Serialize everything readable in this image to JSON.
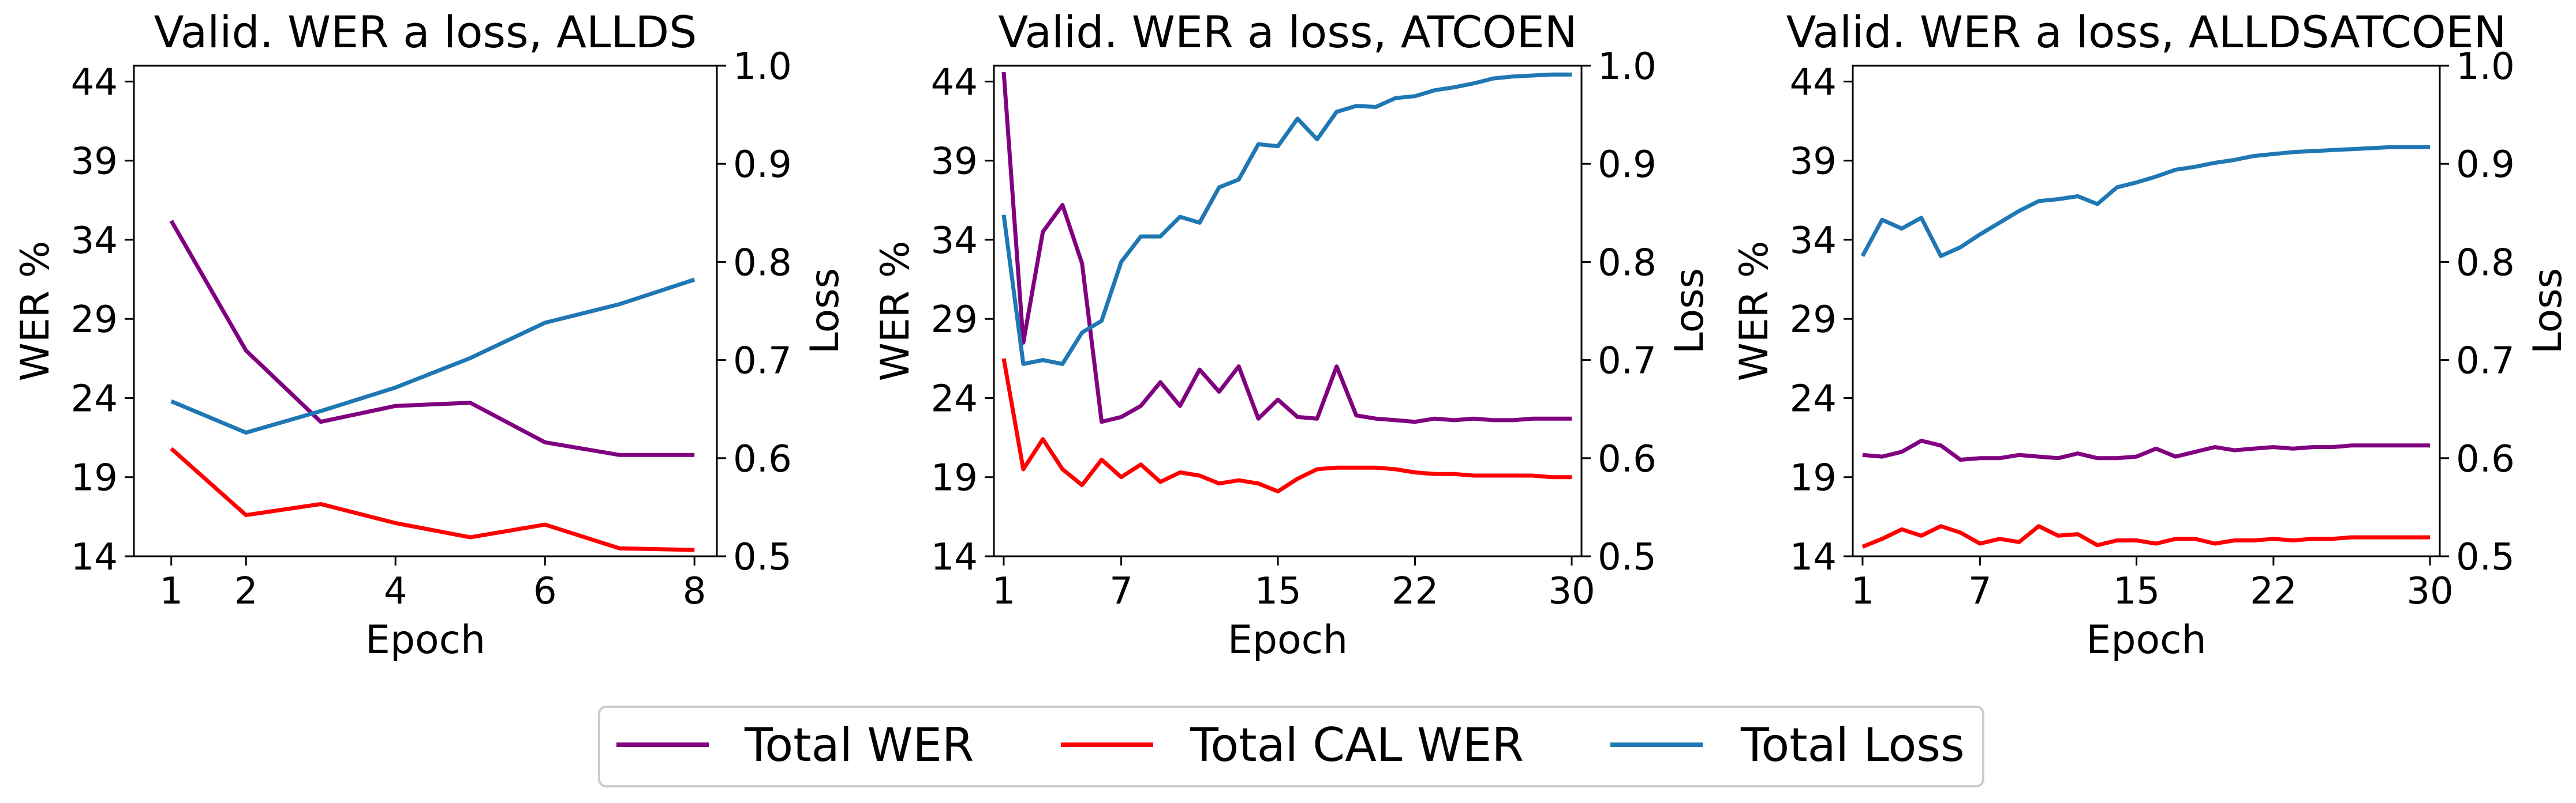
{
  "colors": {
    "total_wer": "#800080",
    "total_cal_wer": "#ff0000",
    "total_loss": "#1f77b4"
  },
  "legend": [
    {
      "key": "total_wer",
      "label": "Total WER"
    },
    {
      "key": "total_cal_wer",
      "label": "Total CAL WER"
    },
    {
      "key": "total_loss",
      "label": "Total Loss"
    }
  ],
  "chart_data": [
    {
      "type": "line",
      "title": "Valid. WER a loss, ALLDS",
      "xlabel": "Epoch",
      "ylabel": "WER %",
      "ylabel_right": "Loss",
      "xlim": [
        0.5,
        8.3
      ],
      "xticks": [
        1,
        2,
        4,
        6,
        8
      ],
      "ylim": [
        14,
        45
      ],
      "yticks": [
        14,
        19,
        24,
        29,
        34,
        39,
        44
      ],
      "ylim_right": [
        0.5,
        1.0
      ],
      "yticks_right": [
        0.5,
        0.6,
        0.7,
        0.8,
        0.9,
        1.0
      ],
      "ytick_labels_right": [
        "0.5",
        "0.6",
        "0.7",
        "0.8",
        "0.9",
        "1.0"
      ],
      "grid": false,
      "x": [
        1,
        2,
        3,
        4,
        5,
        6,
        7,
        8
      ],
      "series": [
        {
          "key": "total_wer",
          "name": "Total WER",
          "axis": "left",
          "values": [
            35.2,
            27.0,
            22.5,
            23.5,
            23.7,
            21.2,
            20.4,
            20.4
          ]
        },
        {
          "key": "total_cal_wer",
          "name": "Total CAL WER",
          "axis": "left",
          "values": [
            20.8,
            16.6,
            17.3,
            16.1,
            15.2,
            16.0,
            14.5,
            14.4
          ]
        },
        {
          "key": "total_loss",
          "name": "Total Loss",
          "axis": "right",
          "values": [
            0.658,
            0.626,
            0.648,
            0.672,
            0.702,
            0.738,
            0.757,
            0.782
          ]
        }
      ]
    },
    {
      "type": "line",
      "title": "Valid. WER a loss, ATCOEN",
      "xlabel": "Epoch",
      "ylabel": "WER %",
      "ylabel_right": "Loss",
      "xlim": [
        0.5,
        30.5
      ],
      "xticks": [
        1,
        7,
        15,
        22,
        30
      ],
      "ylim": [
        14,
        45
      ],
      "yticks": [
        14,
        19,
        24,
        29,
        34,
        39,
        44
      ],
      "ylim_right": [
        0.5,
        1.0
      ],
      "yticks_right": [
        0.5,
        0.6,
        0.7,
        0.8,
        0.9,
        1.0
      ],
      "ytick_labels_right": [
        "0.5",
        "0.6",
        "0.7",
        "0.8",
        "0.9",
        "1.0"
      ],
      "grid": false,
      "x": [
        1,
        2,
        3,
        4,
        5,
        6,
        7,
        8,
        9,
        10,
        11,
        12,
        13,
        14,
        15,
        16,
        17,
        18,
        19,
        20,
        21,
        22,
        23,
        24,
        25,
        26,
        27,
        28,
        29,
        30
      ],
      "series": [
        {
          "key": "total_wer",
          "name": "Total WER",
          "axis": "left",
          "values": [
            44.6,
            27.5,
            34.5,
            36.2,
            32.5,
            22.5,
            22.8,
            23.5,
            25.0,
            23.5,
            25.8,
            24.4,
            26.0,
            22.7,
            23.9,
            22.8,
            22.7,
            26.0,
            22.9,
            22.7,
            22.6,
            22.5,
            22.7,
            22.6,
            22.7,
            22.6,
            22.6,
            22.7,
            22.7,
            22.7
          ]
        },
        {
          "key": "total_cal_wer",
          "name": "Total CAL WER",
          "axis": "left",
          "values": [
            26.5,
            19.5,
            21.4,
            19.5,
            18.5,
            20.1,
            19.0,
            19.8,
            18.7,
            19.3,
            19.1,
            18.6,
            18.8,
            18.6,
            18.1,
            18.9,
            19.5,
            19.6,
            19.6,
            19.6,
            19.5,
            19.3,
            19.2,
            19.2,
            19.1,
            19.1,
            19.1,
            19.1,
            19.0,
            19.0
          ]
        },
        {
          "key": "total_loss",
          "name": "Total Loss",
          "axis": "right",
          "values": [
            0.848,
            0.696,
            0.7,
            0.696,
            0.728,
            0.74,
            0.8,
            0.826,
            0.826,
            0.846,
            0.84,
            0.876,
            0.884,
            0.92,
            0.918,
            0.946,
            0.925,
            0.953,
            0.959,
            0.958,
            0.967,
            0.969,
            0.975,
            0.978,
            0.982,
            0.987,
            0.989,
            0.99,
            0.991,
            0.991
          ]
        }
      ]
    },
    {
      "type": "line",
      "title": "Valid. WER a loss, ALLDSATCOEN",
      "xlabel": "Epoch",
      "ylabel": "WER %",
      "ylabel_right": "Loss",
      "xlim": [
        0.5,
        30.5
      ],
      "xticks": [
        1,
        7,
        15,
        22,
        30
      ],
      "ylim": [
        14,
        45
      ],
      "yticks": [
        14,
        19,
        24,
        29,
        34,
        39,
        44
      ],
      "ylim_right": [
        0.5,
        1.0
      ],
      "yticks_right": [
        0.5,
        0.6,
        0.7,
        0.8,
        0.9,
        1.0
      ],
      "ytick_labels_right": [
        "0.5",
        "0.6",
        "0.7",
        "0.8",
        "0.9",
        "1.0"
      ],
      "grid": false,
      "x": [
        1,
        2,
        3,
        4,
        5,
        6,
        7,
        8,
        9,
        10,
        11,
        12,
        13,
        14,
        15,
        16,
        17,
        18,
        19,
        20,
        21,
        22,
        23,
        24,
        25,
        26,
        27,
        28,
        29,
        30
      ],
      "series": [
        {
          "key": "total_wer",
          "name": "Total WER",
          "axis": "left",
          "values": [
            20.4,
            20.3,
            20.6,
            21.3,
            21.0,
            20.1,
            20.2,
            20.2,
            20.4,
            20.3,
            20.2,
            20.5,
            20.2,
            20.2,
            20.3,
            20.8,
            20.3,
            20.6,
            20.9,
            20.7,
            20.8,
            20.9,
            20.8,
            20.9,
            20.9,
            21.0,
            21.0,
            21.0,
            21.0,
            21.0
          ]
        },
        {
          "key": "total_cal_wer",
          "name": "Total CAL WER",
          "axis": "left",
          "values": [
            14.6,
            15.1,
            15.7,
            15.3,
            15.9,
            15.5,
            14.8,
            15.1,
            14.9,
            15.9,
            15.3,
            15.4,
            14.7,
            15.0,
            15.0,
            14.8,
            15.1,
            15.1,
            14.8,
            15.0,
            15.0,
            15.1,
            15.0,
            15.1,
            15.1,
            15.2,
            15.2,
            15.2,
            15.2,
            15.2
          ]
        },
        {
          "key": "total_loss",
          "name": "Total Loss",
          "axis": "right",
          "values": [
            0.806,
            0.843,
            0.834,
            0.845,
            0.806,
            0.815,
            0.828,
            0.84,
            0.852,
            0.862,
            0.864,
            0.867,
            0.859,
            0.876,
            0.881,
            0.887,
            0.894,
            0.897,
            0.901,
            0.904,
            0.908,
            0.91,
            0.912,
            0.913,
            0.914,
            0.915,
            0.916,
            0.917,
            0.917,
            0.917
          ]
        }
      ]
    }
  ]
}
